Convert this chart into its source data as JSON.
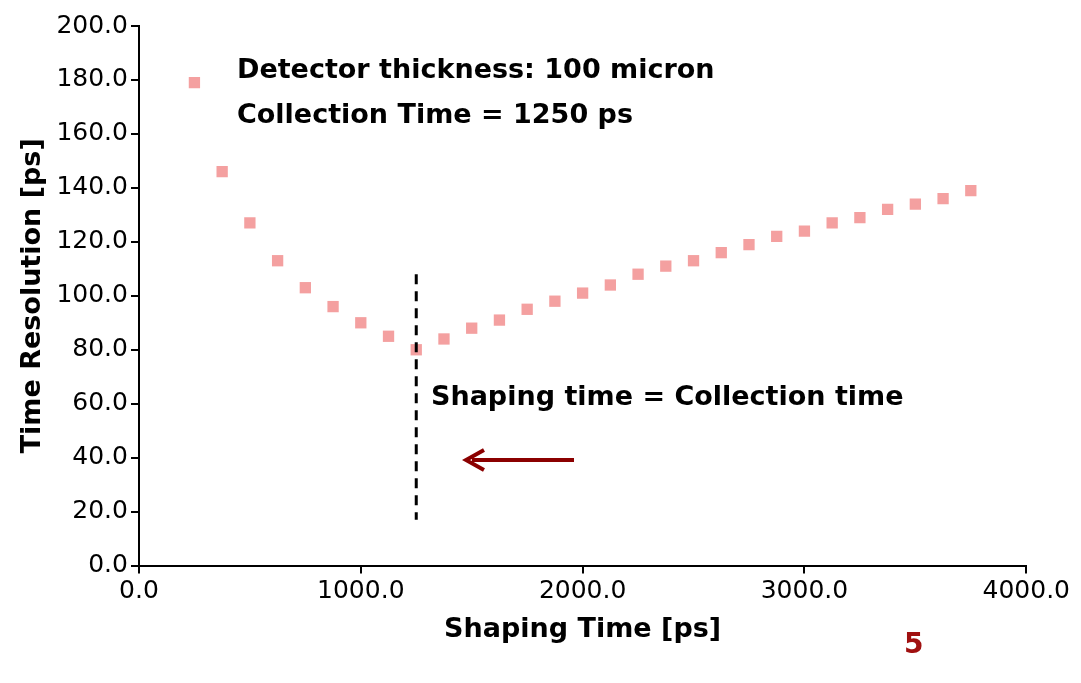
{
  "chart_data": {
    "type": "scatter",
    "xlabel": "Shaping Time [ps]",
    "ylabel": "Time Resolution [ps]",
    "x": [
      250,
      375,
      500,
      625,
      750,
      875,
      1000,
      1125,
      1250,
      1375,
      1500,
      1625,
      1750,
      1875,
      2000,
      2125,
      2250,
      2375,
      2500,
      2625,
      2750,
      2875,
      3000,
      3125,
      3250,
      3375,
      3500,
      3625,
      3750
    ],
    "series": [
      {
        "color": "#f4a0a0",
        "values": [
          179,
          146,
          127,
          113,
          103,
          96,
          90,
          85,
          80,
          84,
          88,
          91,
          95,
          98,
          101,
          104,
          108,
          111,
          113,
          116,
          119,
          122,
          124,
          127,
          129,
          132,
          134,
          136,
          139
        ]
      }
    ],
    "xlim": [
      0,
      4000
    ],
    "xticks": [
      {
        "value": 0,
        "label": "0.0"
      },
      {
        "value": 1000,
        "label": "1000.0"
      },
      {
        "value": 2000,
        "label": "2000.0"
      },
      {
        "value": 3000,
        "label": "3000.0"
      },
      {
        "value": 4000,
        "label": "4000.0"
      }
    ],
    "ylim": [
      0,
      200
    ],
    "yticks": [
      {
        "value": 0,
        "label": "0.0"
      },
      {
        "value": 20,
        "label": "20.0"
      },
      {
        "value": 40,
        "label": "40.0"
      },
      {
        "value": 60,
        "label": "60.0"
      },
      {
        "value": 80,
        "label": "80.0"
      },
      {
        "value": 100,
        "label": "100.0"
      },
      {
        "value": 120,
        "label": "120.0"
      },
      {
        "value": 140,
        "label": "140.0"
      },
      {
        "value": 160,
        "label": "160.0"
      },
      {
        "value": 180,
        "label": "180.0"
      },
      {
        "value": 200,
        "label": "200.0"
      }
    ],
    "ref_lines": [
      {
        "axis": "x",
        "value": 1250,
        "color": "#000000",
        "line_style": "dashed"
      }
    ],
    "annotations": [
      "Detector thickness: 100 micron",
      "Collection Time = 1250 ps",
      "Shaping time = Collection time",
      "5"
    ],
    "marker": "square",
    "grid": false,
    "legend": false
  }
}
